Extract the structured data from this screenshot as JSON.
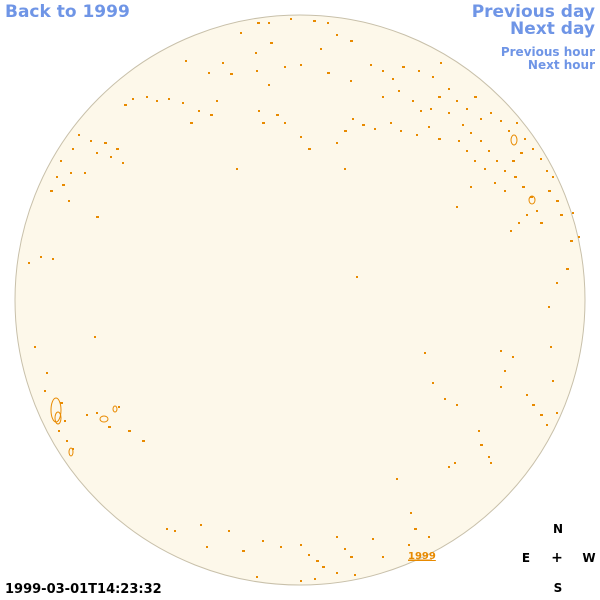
{
  "nav": {
    "back": "Back to 1999",
    "previous_day": "Previous day",
    "next_day": "Next day",
    "previous_hour": "Previous hour",
    "next_hour": "Next hour"
  },
  "year_label": "1999",
  "timestamp": "1999-03-01T14:23:32",
  "compass": {
    "north": "N",
    "east": "E",
    "center": "+",
    "west": "W",
    "south": "S"
  },
  "colors": {
    "link": "#6f95e6",
    "disk_fill": "#fdf8ea",
    "disk_edge": "#c8c0aa",
    "feature": "#e88a00"
  }
}
